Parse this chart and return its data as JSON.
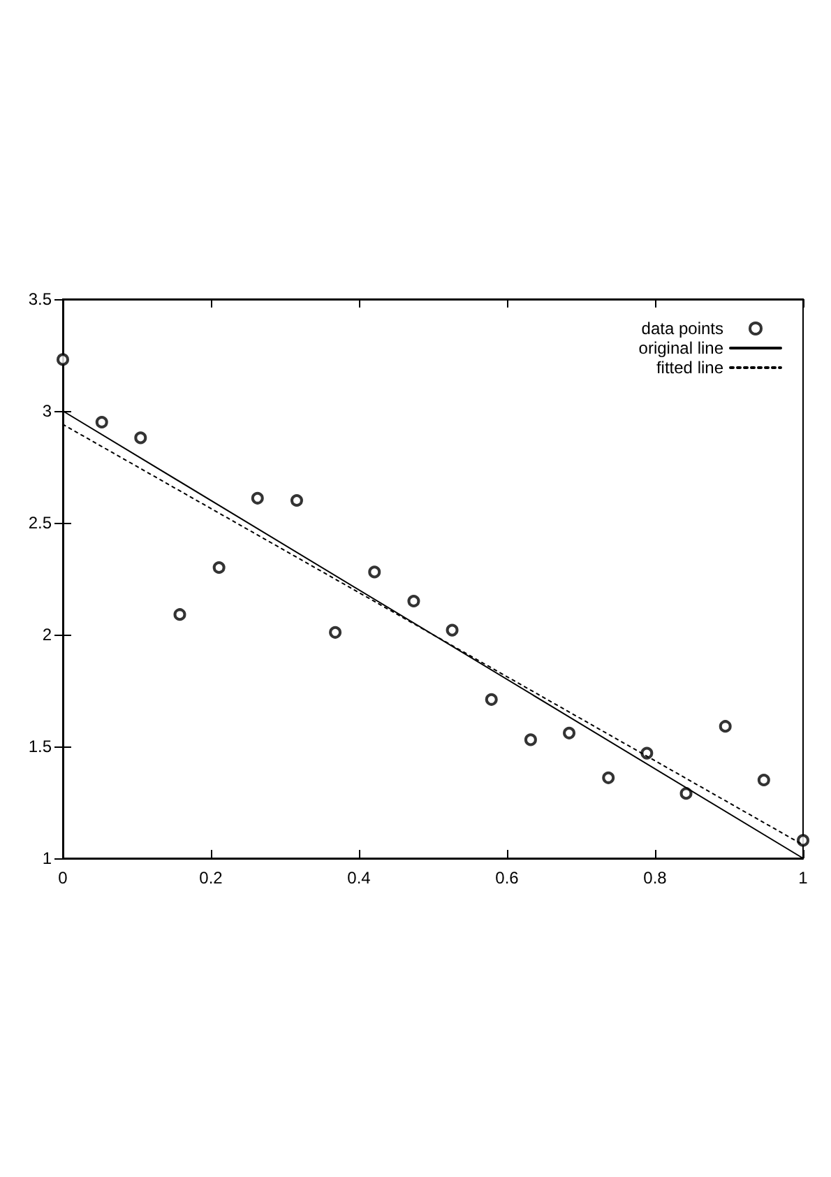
{
  "chart_data": {
    "type": "scatter",
    "xlim": [
      0,
      1
    ],
    "ylim": [
      1,
      3.5
    ],
    "xticks": [
      0,
      0.2,
      0.4,
      0.6,
      0.8,
      1
    ],
    "yticks": [
      1,
      1.5,
      2,
      2.5,
      3,
      3.5
    ],
    "grid": false,
    "legend": "top right",
    "series": [
      {
        "name": "data points",
        "marker": "circle",
        "color": "#000000",
        "x": [
          0,
          0.0526,
          0.105,
          0.158,
          0.211,
          0.263,
          0.316,
          0.368,
          0.421,
          0.474,
          0.526,
          0.579,
          0.632,
          0.684,
          0.737,
          0.789,
          0.842,
          0.895,
          0.947,
          1
        ],
        "values": [
          3.23,
          2.95,
          2.88,
          2.09,
          2.3,
          2.61,
          2.6,
          2.01,
          2.28,
          2.15,
          2.02,
          1.71,
          1.53,
          1.56,
          1.36,
          1.47,
          1.29,
          1.59,
          1.35,
          1.08
        ]
      },
      {
        "name": "original line",
        "type": "line",
        "marker": "none",
        "line_style": "solid",
        "color": "#000000",
        "x": [
          0,
          1
        ],
        "values": [
          3,
          1
        ]
      },
      {
        "name": "fitted line",
        "type": "line",
        "marker": "none",
        "line_style": "dotted",
        "color": "#000000",
        "x": [
          0,
          1
        ],
        "values": [
          2.94,
          1.06
        ]
      }
    ]
  }
}
